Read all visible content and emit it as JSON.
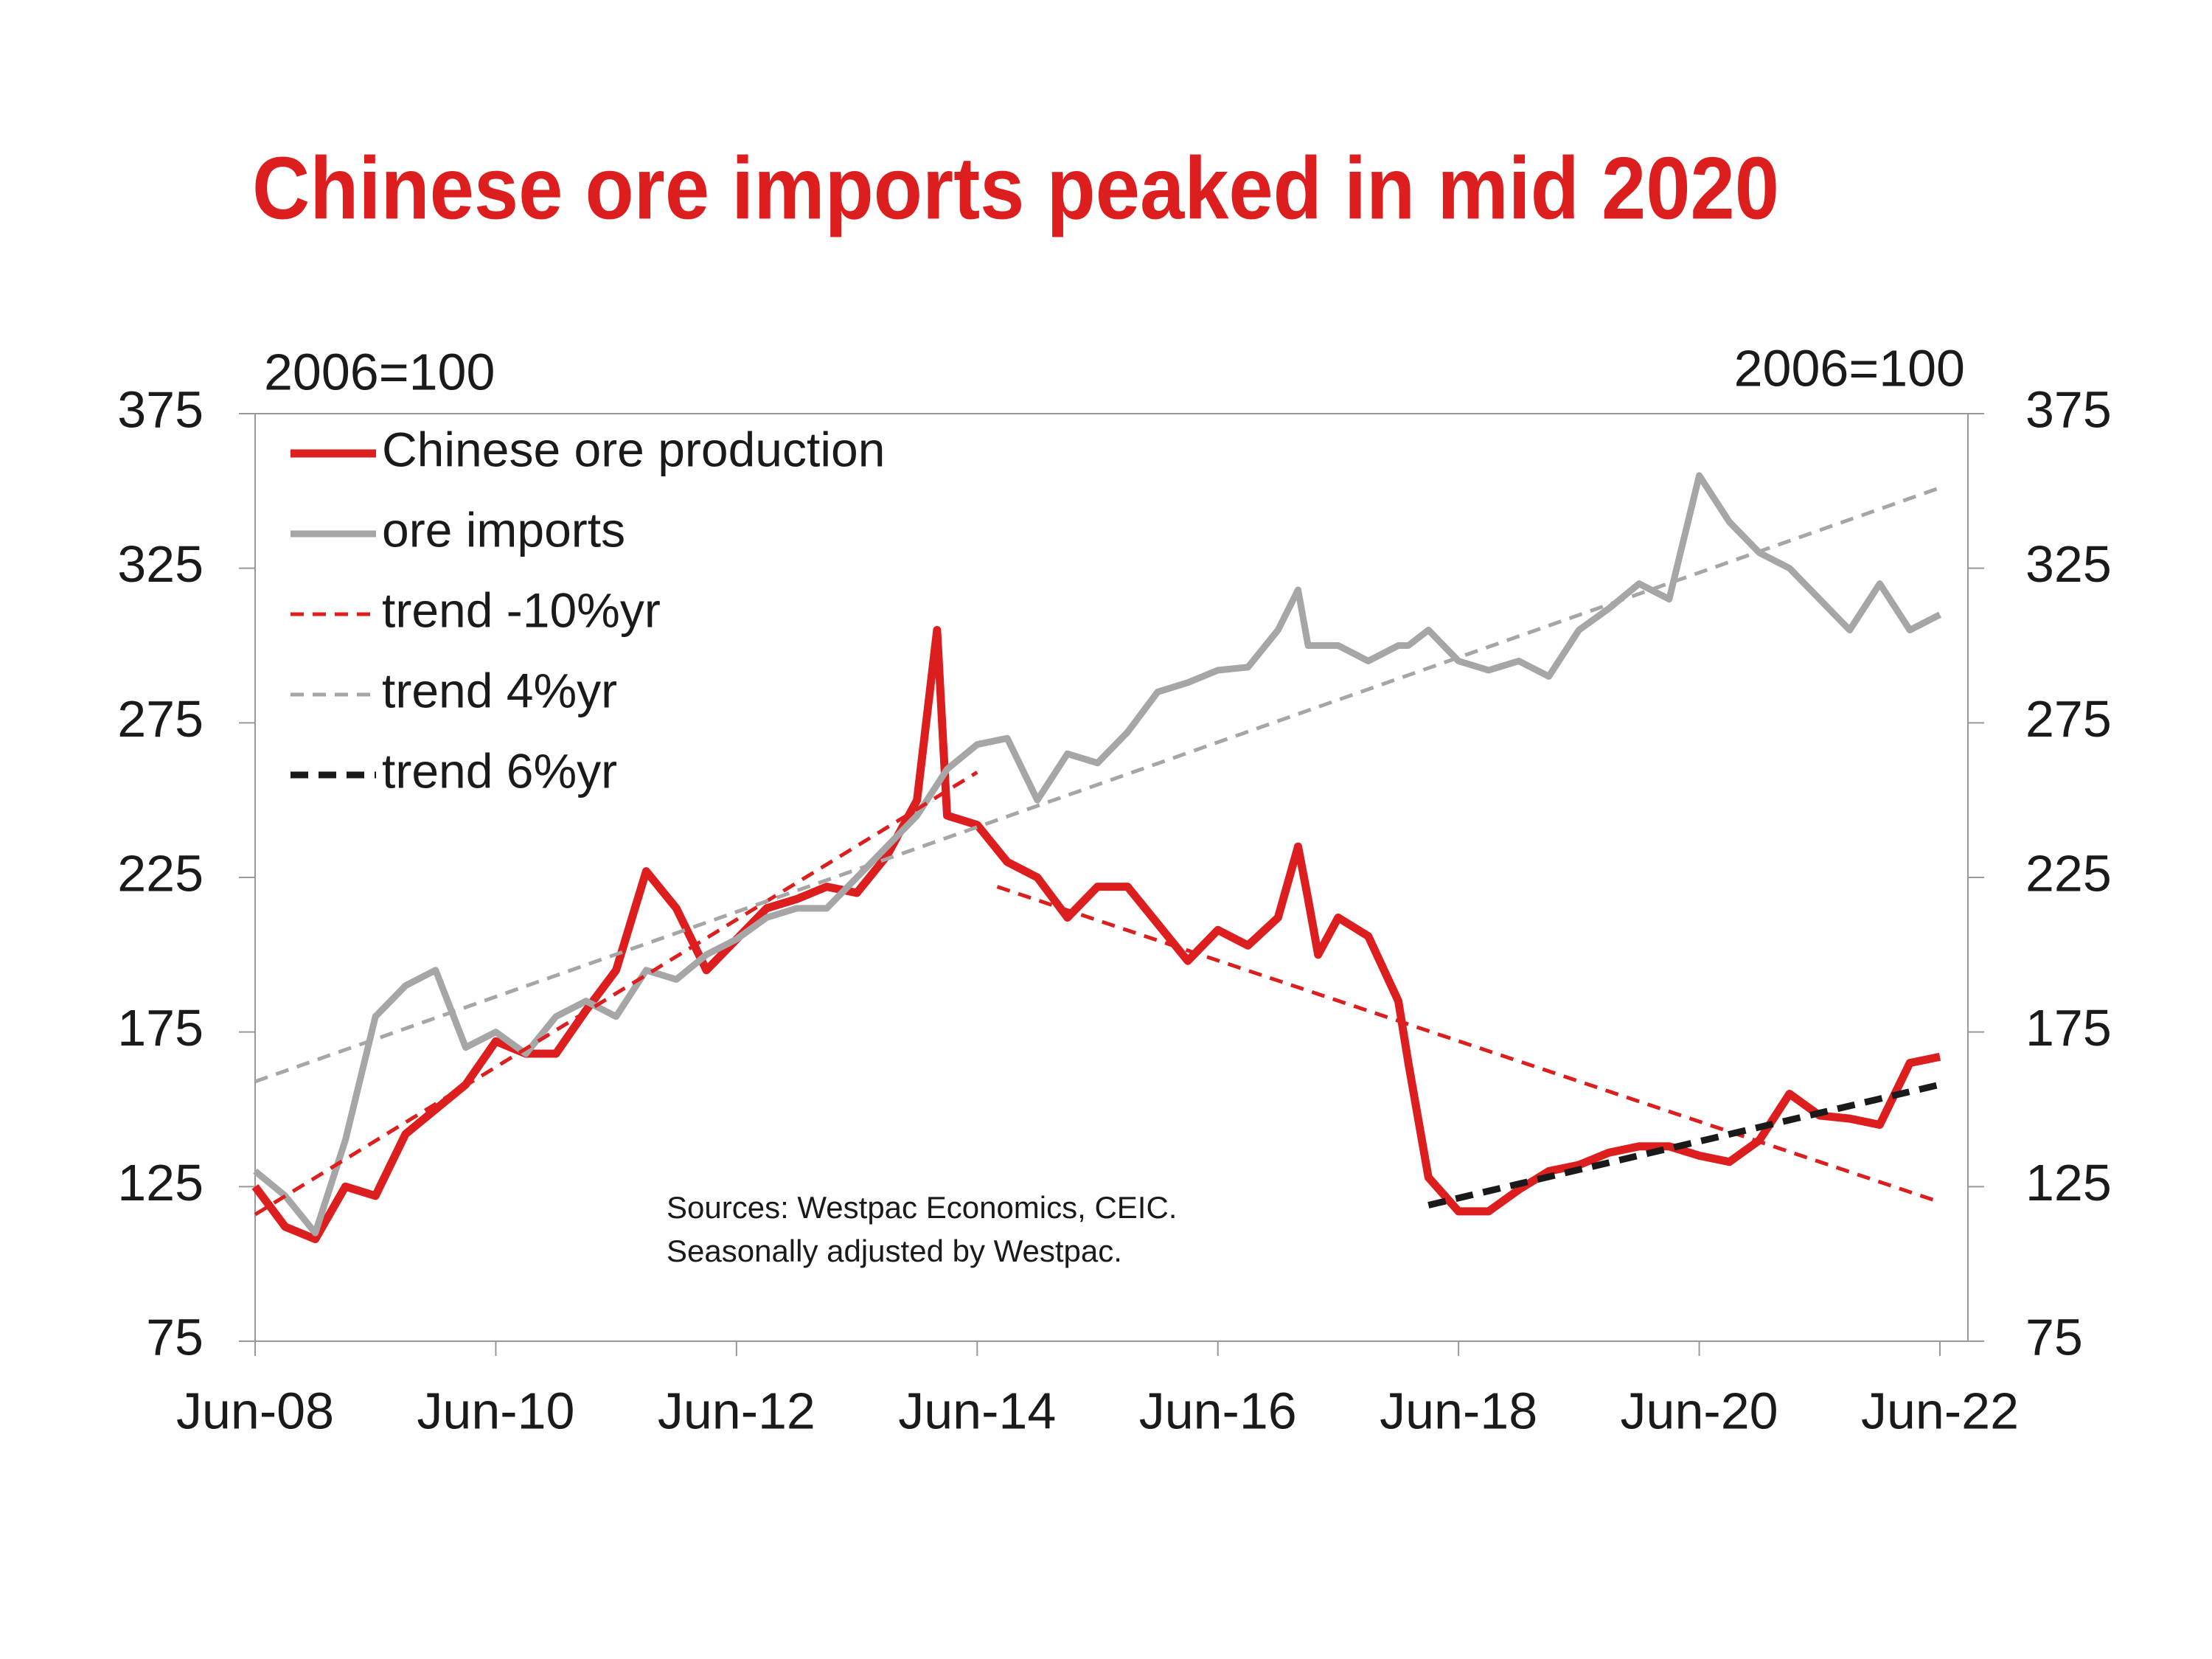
{
  "chart_data": {
    "type": "line",
    "title": "Chinese ore imports peaked in mid 2020",
    "y_label": "2006=100",
    "y2_label": "2006=100",
    "annotation": [
      "Sources: Westpac Economics, CEIC.",
      "Seasonally adjusted by Westpac."
    ],
    "x": [
      "Jun-08",
      "Sep-08",
      "Dec-08",
      "Mar-09",
      "Jun-09",
      "Sep-09",
      "Dec-09",
      "Mar-10",
      "Jun-10",
      "Sep-10",
      "Dec-10",
      "Mar-11",
      "Jun-11",
      "Sep-11",
      "Dec-11",
      "Mar-12",
      "Jun-12",
      "Sep-12",
      "Dec-12",
      "Mar-13",
      "Jun-13",
      "Sep-13",
      "Dec-13",
      "Feb-14",
      "Mar-14",
      "Jun-14",
      "Sep-14",
      "Dec-14",
      "Mar-15",
      "Jun-15",
      "Sep-15",
      "Dec-15",
      "Mar-16",
      "Jun-16",
      "Sep-16",
      "Dec-16",
      "Feb-17",
      "Mar-17",
      "Apr-17",
      "Jun-17",
      "Sep-17",
      "Dec-17",
      "Jan-18",
      "Mar-18",
      "Jun-18",
      "Sep-18",
      "Dec-18",
      "Mar-19",
      "Jun-19",
      "Sep-19",
      "Dec-19",
      "Mar-20",
      "Jun-20",
      "Sep-20",
      "Dec-20",
      "Mar-21",
      "Jun-21",
      "Sep-21",
      "Dec-21",
      "Mar-22",
      "Jun-22"
    ],
    "series": [
      {
        "name": "Chinese ore production",
        "color": "#dd1e1e",
        "width": 11,
        "dash": false,
        "values": [
          125,
          112,
          108,
          125,
          122,
          142,
          150,
          158,
          172,
          168,
          168,
          182,
          195,
          227,
          215,
          195,
          205,
          215,
          218,
          222,
          220,
          232,
          250,
          305,
          245,
          242,
          230,
          225,
          212,
          222,
          222,
          210,
          198,
          208,
          203,
          212,
          235,
          218,
          200,
          212,
          206,
          185,
          165,
          128,
          117,
          117,
          124,
          130,
          132,
          136,
          138,
          138,
          135,
          133,
          140,
          155,
          148,
          147,
          145,
          165,
          167
        ]
      },
      {
        "name": "ore imports",
        "color": "#a6a6a6",
        "width": 9,
        "dash": false,
        "values": [
          130,
          122,
          110,
          140,
          180,
          190,
          195,
          170,
          175,
          168,
          180,
          185,
          180,
          195,
          192,
          200,
          205,
          212,
          215,
          215,
          225,
          235,
          245,
          255,
          260,
          268,
          270,
          250,
          265,
          262,
          272,
          285,
          288,
          292,
          293,
          305,
          318,
          300,
          300,
          300,
          295,
          300,
          300,
          305,
          295,
          292,
          295,
          290,
          305,
          312,
          320,
          315,
          355,
          340,
          330,
          325,
          315,
          305,
          320,
          305,
          310
        ]
      },
      {
        "name": "trend -10%yr",
        "color": "#dd1e1e",
        "width": 5,
        "dash": true,
        "x": [
          "Jun-08",
          "Jun-14",
          "Jul-14",
          "Aug-14",
          "Jun-22"
        ],
        "values": [
          116,
          259,
          null,
          222,
          120
        ]
      },
      {
        "name": "trend 4%yr",
        "color": "#a6a6a6",
        "width": 5,
        "dash": true,
        "x": [
          "Jun-08",
          "Jun-22"
        ],
        "values": [
          159,
          351
        ]
      },
      {
        "name": "trend 6%yr",
        "color": "#1a1a1a",
        "width": 9,
        "dash": true,
        "x": [
          "Mar-18",
          "Jun-22"
        ],
        "values": [
          119,
          158
        ]
      }
    ],
    "xticks": [
      "Jun-08",
      "Jun-10",
      "Jun-12",
      "Jun-14",
      "Jun-16",
      "Jun-18",
      "Jun-20",
      "Jun-22"
    ],
    "ylim": [
      75,
      375
    ],
    "yticks": [
      75,
      125,
      175,
      225,
      275,
      325,
      375
    ],
    "y2lim": [
      75,
      375
    ],
    "y2ticks": [
      75,
      125,
      175,
      225,
      275,
      325,
      375
    ],
    "legend": "upper left",
    "grid": false
  }
}
